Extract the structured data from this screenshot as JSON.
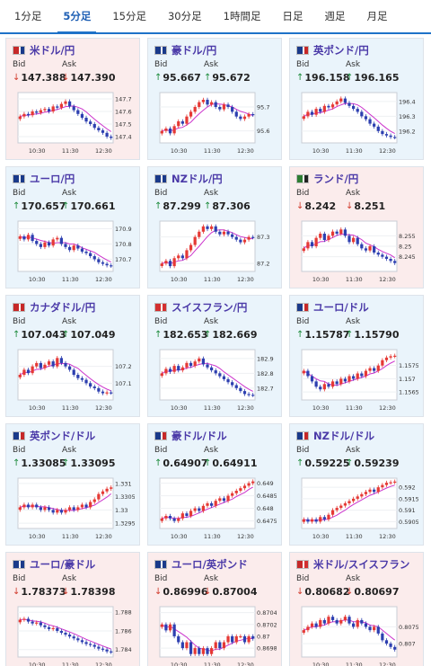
{
  "tabs": [
    "1分足",
    "5分足",
    "15分足",
    "30分足",
    "1時間足",
    "日足",
    "週足",
    "月足"
  ],
  "active_tab": 1,
  "labels": {
    "bid": "Bid",
    "ask": "Ask"
  },
  "colors": {
    "up": "#e53935",
    "down": "#2d3fb0",
    "ma": "#cc33cc",
    "ma2": "#e94fd9"
  },
  "pairs": [
    {
      "name": "米ドル/円",
      "dir": "down",
      "bid": "147.388",
      "ask": "147.390",
      "flag": [
        "#c62828",
        "#1a3a8a"
      ],
      "chart_data": {
        "type": "candlestick",
        "x_ticks": [
          "10:30",
          "11:30",
          "12:30"
        ],
        "y_ticks": [
          "147.7",
          "147.6",
          "147.5",
          "147.4"
        ],
        "ylim": [
          147.35,
          147.75
        ],
        "close": [
          147.56,
          147.58,
          147.57,
          147.6,
          147.59,
          147.61,
          147.62,
          147.6,
          147.64,
          147.63,
          147.66,
          147.68,
          147.64,
          147.61,
          147.58,
          147.55,
          147.52,
          147.5,
          147.47,
          147.45,
          147.43,
          147.4,
          147.39
        ]
      }
    },
    {
      "name": "豪ドル/円",
      "dir": "up",
      "bid": "95.667",
      "ask": "95.672",
      "flag": [
        "#1a3a8a",
        "#1a3a8a"
      ],
      "chart_data": {
        "type": "candlestick",
        "x_ticks": [
          "10:30",
          "11:30",
          "12:30"
        ],
        "y_ticks": [
          "95.7",
          "95.6"
        ],
        "ylim": [
          95.55,
          95.76
        ],
        "close": [
          95.6,
          95.61,
          95.59,
          95.62,
          95.64,
          95.63,
          95.66,
          95.68,
          95.7,
          95.72,
          95.73,
          95.71,
          95.72,
          95.7,
          95.69,
          95.71,
          95.7,
          95.68,
          95.66,
          95.65,
          95.66,
          95.67,
          95.667
        ]
      }
    },
    {
      "name": "英ポンド/円",
      "dir": "up",
      "bid": "196.158",
      "ask": "196.165",
      "flag": [
        "#1a3a8a",
        "#c62828"
      ],
      "chart_data": {
        "type": "candlestick",
        "x_ticks": [
          "10:30",
          "11:30",
          "12:30"
        ],
        "y_ticks": [
          "196.4",
          "196.3",
          "196.2"
        ],
        "ylim": [
          196.12,
          196.46
        ],
        "close": [
          196.3,
          196.33,
          196.31,
          196.35,
          196.33,
          196.37,
          196.36,
          196.38,
          196.4,
          196.42,
          196.39,
          196.37,
          196.35,
          196.33,
          196.3,
          196.28,
          196.25,
          196.23,
          196.2,
          196.18,
          196.17,
          196.16,
          196.158
        ]
      }
    },
    {
      "name": "ユーロ/円",
      "dir": "up",
      "bid": "170.657",
      "ask": "170.661",
      "flag": [
        "#1a3a8a",
        "#1a3a8a"
      ],
      "chart_data": {
        "type": "candlestick",
        "x_ticks": [
          "10:30",
          "11:30",
          "12:30"
        ],
        "y_ticks": [
          "170.9",
          "170.8",
          "170.7"
        ],
        "ylim": [
          170.62,
          170.95
        ],
        "close": [
          170.85,
          170.83,
          170.86,
          170.82,
          170.8,
          170.78,
          170.81,
          170.79,
          170.83,
          170.84,
          170.8,
          170.78,
          170.76,
          170.79,
          170.77,
          170.75,
          170.74,
          170.72,
          170.7,
          170.68,
          170.67,
          170.66,
          170.657
        ]
      }
    },
    {
      "name": "NZドル/円",
      "dir": "up",
      "bid": "87.299",
      "ask": "87.306",
      "flag": [
        "#1a3a8a",
        "#1a3a8a"
      ],
      "chart_data": {
        "type": "candlestick",
        "x_ticks": [
          "10:30",
          "11:30",
          "12:30"
        ],
        "y_ticks": [
          "87.3",
          "87.2"
        ],
        "ylim": [
          87.17,
          87.36
        ],
        "close": [
          87.2,
          87.21,
          87.19,
          87.22,
          87.23,
          87.22,
          87.25,
          87.27,
          87.3,
          87.32,
          87.34,
          87.33,
          87.34,
          87.32,
          87.31,
          87.32,
          87.31,
          87.3,
          87.29,
          87.28,
          87.29,
          87.3,
          87.299
        ]
      }
    },
    {
      "name": "ランド/円",
      "dir": "down",
      "bid": "8.242",
      "ask": "8.251",
      "flag": [
        "#2e7d32",
        "#222222"
      ],
      "chart_data": {
        "type": "candlestick",
        "x_ticks": [
          "10:30",
          "11:30",
          "12:30"
        ],
        "y_ticks": [
          "8.255",
          "8.25",
          "8.245"
        ],
        "ylim": [
          8.238,
          8.262
        ],
        "close": [
          8.249,
          8.252,
          8.25,
          8.254,
          8.256,
          8.253,
          8.255,
          8.257,
          8.256,
          8.258,
          8.255,
          8.252,
          8.254,
          8.251,
          8.249,
          8.248,
          8.25,
          8.247,
          8.246,
          8.245,
          8.244,
          8.243,
          8.242
        ]
      }
    },
    {
      "name": "カナダドル/円",
      "dir": "up",
      "bid": "107.043",
      "ask": "107.049",
      "flag": [
        "#c62828",
        "#c62828"
      ],
      "chart_data": {
        "type": "candlestick",
        "x_ticks": [
          "10:30",
          "11:30",
          "12:30"
        ],
        "y_ticks": [
          "107.2",
          "107.1"
        ],
        "ylim": [
          107.0,
          107.3
        ],
        "close": [
          107.15,
          107.18,
          107.16,
          107.2,
          107.22,
          107.19,
          107.21,
          107.23,
          107.2,
          107.25,
          107.22,
          107.2,
          107.18,
          107.15,
          107.13,
          107.12,
          107.1,
          107.08,
          107.07,
          107.05,
          107.04,
          107.045,
          107.043
        ]
      }
    },
    {
      "name": "スイスフラン/円",
      "dir": "up",
      "bid": "182.653",
      "ask": "182.669",
      "flag": [
        "#d32f2f",
        "#d32f2f"
      ],
      "chart_data": {
        "type": "candlestick",
        "x_ticks": [
          "10:30",
          "11:30",
          "12:30"
        ],
        "y_ticks": [
          "182.9",
          "182.8",
          "182.7"
        ],
        "ylim": [
          182.62,
          182.96
        ],
        "close": [
          182.8,
          182.83,
          182.81,
          182.85,
          182.82,
          182.84,
          182.87,
          182.85,
          182.88,
          182.9,
          182.86,
          182.84,
          182.82,
          182.8,
          182.78,
          182.76,
          182.74,
          182.72,
          182.7,
          182.68,
          182.66,
          182.655,
          182.653
        ]
      }
    },
    {
      "name": "ユーロ/ドル",
      "dir": "up",
      "bid": "1.15787",
      "ask": "1.15790",
      "flag": [
        "#1a3a8a",
        "#c62828"
      ],
      "chart_data": {
        "type": "candlestick",
        "x_ticks": [
          "10:30",
          "11:30",
          "12:30"
        ],
        "y_ticks": [
          "1.1575",
          "1.157",
          "1.1565"
        ],
        "ylim": [
          1.1562,
          1.1581
        ],
        "close": [
          1.1573,
          1.1571,
          1.1569,
          1.1567,
          1.1566,
          1.1568,
          1.1567,
          1.1569,
          1.1568,
          1.157,
          1.1569,
          1.1571,
          1.157,
          1.1572,
          1.1571,
          1.1573,
          1.1574,
          1.1573,
          1.1575,
          1.1577,
          1.1578,
          1.15785,
          1.15787
        ]
      }
    },
    {
      "name": "英ポンド/ドル",
      "dir": "up",
      "bid": "1.33085",
      "ask": "1.33095",
      "flag": [
        "#1a3a8a",
        "#c62828"
      ],
      "chart_data": {
        "type": "candlestick",
        "x_ticks": [
          "10:30",
          "11:30",
          "12:30"
        ],
        "y_ticks": [
          "1.331",
          "1.3305",
          "1.33",
          "1.3295"
        ],
        "ylim": [
          1.3293,
          1.3312
        ],
        "close": [
          1.3301,
          1.3302,
          1.3301,
          1.3302,
          1.3301,
          1.33,
          1.3301,
          1.33,
          1.3299,
          1.33,
          1.3299,
          1.33,
          1.3301,
          1.33,
          1.3301,
          1.3302,
          1.3301,
          1.3303,
          1.3304,
          1.3306,
          1.3307,
          1.3308,
          1.33085
        ]
      }
    },
    {
      "name": "豪ドル/ドル",
      "dir": "up",
      "bid": "0.64907",
      "ask": "0.64911",
      "flag": [
        "#1a3a8a",
        "#c62828"
      ],
      "chart_data": {
        "type": "candlestick",
        "x_ticks": [
          "10:30",
          "11:30",
          "12:30"
        ],
        "y_ticks": [
          "0.649",
          "0.6485",
          "0.648",
          "0.6475"
        ],
        "ylim": [
          0.6472,
          0.6492
        ],
        "close": [
          0.6476,
          0.6477,
          0.6476,
          0.6475,
          0.6476,
          0.6478,
          0.6477,
          0.6479,
          0.648,
          0.6479,
          0.6481,
          0.6482,
          0.6481,
          0.6483,
          0.6484,
          0.6483,
          0.6485,
          0.6486,
          0.6487,
          0.6488,
          0.6489,
          0.649,
          0.64907
        ]
      }
    },
    {
      "name": "NZドル/ドル",
      "dir": "up",
      "bid": "0.59225",
      "ask": "0.59239",
      "flag": [
        "#1a3a8a",
        "#c62828"
      ],
      "chart_data": {
        "type": "candlestick",
        "x_ticks": [
          "10:30",
          "11:30",
          "12:30"
        ],
        "y_ticks": [
          "0.592",
          "0.5915",
          "0.591",
          "0.5905"
        ],
        "ylim": [
          0.5902,
          0.5924
        ],
        "close": [
          0.5906,
          0.5905,
          0.5906,
          0.5905,
          0.5907,
          0.5906,
          0.5908,
          0.591,
          0.5911,
          0.5912,
          0.5913,
          0.5914,
          0.5915,
          0.5916,
          0.5917,
          0.5918,
          0.5919,
          0.5918,
          0.592,
          0.5921,
          0.5922,
          0.59222,
          0.59225
        ]
      }
    },
    {
      "name": "ユーロ/豪ドル",
      "dir": "down",
      "bid": "1.78373",
      "ask": "1.78398",
      "flag": [
        "#1a3a8a",
        "#1a3a8a"
      ],
      "chart_data": {
        "type": "candlestick",
        "x_ticks": [
          "10:30",
          "11:30",
          "12:30"
        ],
        "y_ticks": [
          "1.788",
          "1.786",
          "1.784"
        ],
        "ylim": [
          1.7832,
          1.7886
        ],
        "close": [
          1.7872,
          1.7873,
          1.787,
          1.7868,
          1.7869,
          1.7866,
          1.7864,
          1.7862,
          1.7863,
          1.786,
          1.7858,
          1.7856,
          1.7854,
          1.7852,
          1.785,
          1.7848,
          1.7846,
          1.7845,
          1.7843,
          1.7841,
          1.784,
          1.7838,
          1.78373
        ]
      }
    },
    {
      "name": "ユーロ/英ポンド",
      "dir": "down",
      "bid": "0.86996",
      "ask": "0.87004",
      "flag": [
        "#1a3a8a",
        "#1a3a8a"
      ],
      "chart_data": {
        "type": "candlestick",
        "x_ticks": [
          "10:30",
          "11:30",
          "12:30"
        ],
        "y_ticks": [
          "0.8704",
          "0.8702",
          "0.87",
          "0.8698"
        ],
        "ylim": [
          0.86965,
          0.8705
        ],
        "close": [
          0.8702,
          0.8701,
          0.8702,
          0.87,
          0.8699,
          0.8698,
          0.8699,
          0.8697,
          0.8698,
          0.8697,
          0.8698,
          0.8697,
          0.8698,
          0.8699,
          0.8698,
          0.8699,
          0.87,
          0.8699,
          0.87,
          0.87,
          0.8699,
          0.87,
          0.86996
        ]
      }
    },
    {
      "name": "米ドル/スイスフラン",
      "dir": "down",
      "bid": "0.80682",
      "ask": "0.80697",
      "flag": [
        "#c62828",
        "#d32f2f"
      ],
      "chart_data": {
        "type": "candlestick",
        "x_ticks": [
          "10:30",
          "11:30",
          "12:30"
        ],
        "y_ticks": [
          "0.8075",
          "0.807"
        ],
        "ylim": [
          0.8066,
          0.8081
        ],
        "close": [
          0.8074,
          0.8075,
          0.8076,
          0.8075,
          0.8077,
          0.8076,
          0.8078,
          0.8077,
          0.8076,
          0.8077,
          0.8078,
          0.8076,
          0.8075,
          0.8077,
          0.8076,
          0.8075,
          0.8074,
          0.8075,
          0.8073,
          0.8071,
          0.807,
          0.8069,
          0.80682
        ]
      }
    }
  ]
}
